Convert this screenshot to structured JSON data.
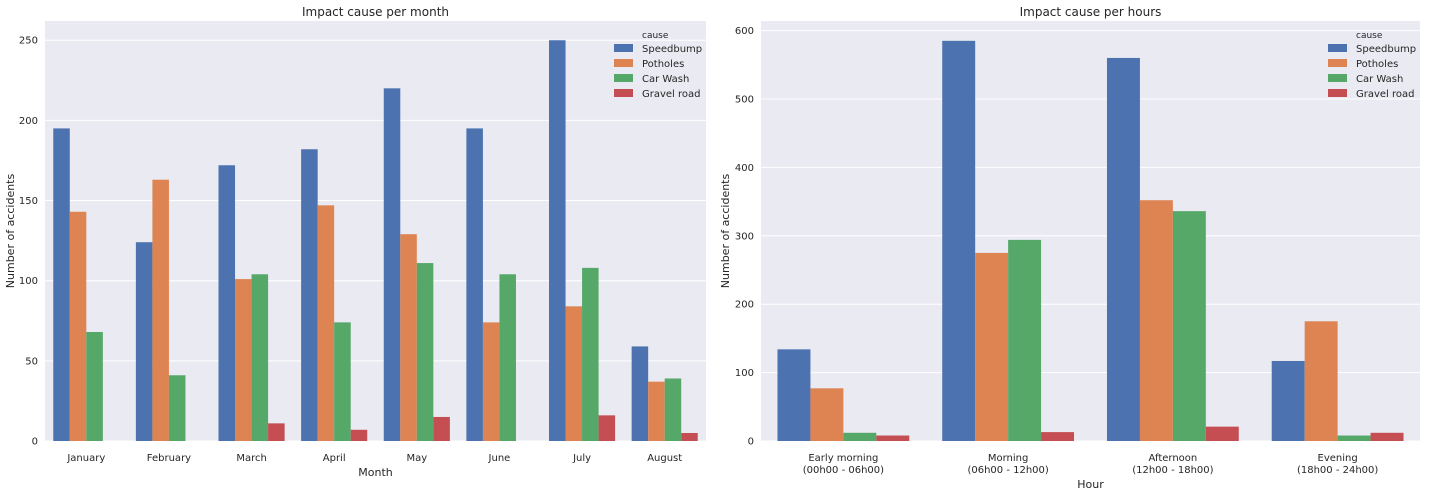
{
  "chart_data": [
    {
      "type": "bar",
      "title": "Impact cause per month",
      "xlabel": "Month",
      "ylabel": "Number of accidents",
      "ylim": [
        0,
        262
      ],
      "yticks": [
        0,
        50,
        100,
        150,
        200,
        250
      ],
      "grid": true,
      "legend_title": "cause",
      "legend_position": "top-right",
      "categories": [
        "January",
        "February",
        "March",
        "April",
        "May",
        "June",
        "July",
        "August"
      ],
      "series": [
        {
          "name": "Speedbump",
          "color": "#4c72b0",
          "values": [
            195,
            124,
            172,
            182,
            220,
            195,
            250,
            59
          ]
        },
        {
          "name": "Potholes",
          "color": "#dd8452",
          "values": [
            143,
            163,
            101,
            147,
            129,
            74,
            84,
            37
          ]
        },
        {
          "name": "Car Wash",
          "color": "#55a868",
          "values": [
            68,
            41,
            104,
            74,
            111,
            104,
            108,
            39
          ]
        },
        {
          "name": "Gravel road",
          "color": "#c44e52",
          "values": [
            0,
            0,
            11,
            7,
            15,
            0,
            16,
            5
          ]
        }
      ]
    },
    {
      "type": "bar",
      "title": "Impact cause per hours",
      "xlabel": "Hour",
      "ylabel": "Number of accidents",
      "ylim": [
        0,
        614
      ],
      "yticks": [
        0,
        100,
        200,
        300,
        400,
        500,
        600
      ],
      "grid": true,
      "legend_title": "cause",
      "legend_position": "top-right",
      "categories": [
        [
          "Early morning",
          "(00h00 - 06h00)"
        ],
        [
          "Morning",
          "(06h00 - 12h00)"
        ],
        [
          "Afternoon",
          "(12h00 - 18h00)"
        ],
        [
          "Evening",
          "(18h00 - 24h00)"
        ]
      ],
      "series": [
        {
          "name": "Speedbump",
          "color": "#4c72b0",
          "values": [
            134,
            585,
            560,
            117
          ]
        },
        {
          "name": "Potholes",
          "color": "#dd8452",
          "values": [
            77,
            275,
            352,
            175
          ]
        },
        {
          "name": "Car Wash",
          "color": "#55a868",
          "values": [
            12,
            294,
            336,
            8
          ]
        },
        {
          "name": "Gravel road",
          "color": "#c44e52",
          "values": [
            8,
            13,
            21,
            12
          ]
        }
      ]
    }
  ]
}
